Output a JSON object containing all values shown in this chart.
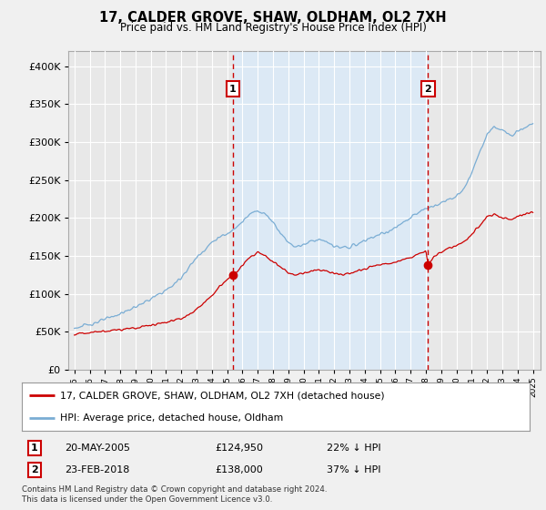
{
  "title": "17, CALDER GROVE, SHAW, OLDHAM, OL2 7XH",
  "subtitle": "Price paid vs. HM Land Registry's House Price Index (HPI)",
  "ylim": [
    0,
    420000
  ],
  "xlim_start": 1994.6,
  "xlim_end": 2025.5,
  "transaction1": {
    "date": "20-MAY-2005",
    "price": 124950,
    "label": "1",
    "year": 2005.38,
    "hpi_note": "22% ↓ HPI"
  },
  "transaction2": {
    "date": "23-FEB-2018",
    "price": 138000,
    "label": "2",
    "year": 2018.14,
    "hpi_note": "37% ↓ HPI"
  },
  "red_line_color": "#cc0000",
  "blue_line_color": "#7aadd4",
  "shade_color": "#dce9f5",
  "plot_bg_color": "#e8e8e8",
  "grid_color": "#ffffff",
  "vline_color": "#cc0000",
  "marker_box_color": "#cc0000",
  "fig_bg_color": "#f0f0f0",
  "legend_label_red": "17, CALDER GROVE, SHAW, OLDHAM, OL2 7XH (detached house)",
  "legend_label_blue": "HPI: Average price, detached house, Oldham",
  "footnote": "Contains HM Land Registry data © Crown copyright and database right 2024.\nThis data is licensed under the Open Government Licence v3.0.",
  "hpi_data": {
    "years": [
      1995.0,
      1995.5,
      1996.0,
      1996.5,
      1997.0,
      1997.5,
      1998.0,
      1998.5,
      1999.0,
      1999.5,
      2000.0,
      2000.5,
      2001.0,
      2001.5,
      2002.0,
      2002.5,
      2003.0,
      2003.5,
      2004.0,
      2004.5,
      2005.0,
      2005.5,
      2006.0,
      2006.5,
      2007.0,
      2007.5,
      2008.0,
      2008.5,
      2009.0,
      2009.5,
      2010.0,
      2010.5,
      2011.0,
      2011.5,
      2012.0,
      2012.5,
      2013.0,
      2013.5,
      2014.0,
      2014.5,
      2015.0,
      2015.5,
      2016.0,
      2016.5,
      2017.0,
      2017.5,
      2018.0,
      2018.5,
      2019.0,
      2019.5,
      2020.0,
      2020.5,
      2021.0,
      2021.5,
      2022.0,
      2022.5,
      2023.0,
      2023.5,
      2024.0,
      2024.5,
      2025.0
    ],
    "values": [
      55000,
      57000,
      60000,
      63000,
      66000,
      70000,
      74000,
      78000,
      83000,
      88000,
      93000,
      99000,
      105000,
      112000,
      122000,
      135000,
      148000,
      158000,
      168000,
      175000,
      178000,
      188000,
      195000,
      205000,
      210000,
      205000,
      195000,
      180000,
      168000,
      162000,
      165000,
      170000,
      172000,
      168000,
      163000,
      160000,
      162000,
      165000,
      170000,
      175000,
      178000,
      182000,
      187000,
      193000,
      200000,
      207000,
      212000,
      216000,
      220000,
      225000,
      228000,
      238000,
      260000,
      285000,
      310000,
      320000,
      315000,
      310000,
      315000,
      320000,
      325000
    ]
  },
  "red_data": {
    "years": [
      1995.0,
      1995.5,
      1996.0,
      1996.5,
      1997.0,
      1997.5,
      1998.0,
      1998.5,
      1999.0,
      1999.5,
      2000.0,
      2000.5,
      2001.0,
      2001.5,
      2002.0,
      2002.5,
      2003.0,
      2003.5,
      2004.0,
      2004.5,
      2005.0,
      2005.38,
      2005.8,
      2006.0,
      2006.5,
      2007.0,
      2007.5,
      2008.0,
      2008.5,
      2009.0,
      2009.5,
      2010.0,
      2010.5,
      2011.0,
      2011.5,
      2012.0,
      2012.5,
      2013.0,
      2013.5,
      2014.0,
      2014.5,
      2015.0,
      2015.5,
      2016.0,
      2016.5,
      2017.0,
      2017.5,
      2018.0,
      2018.14,
      2018.5,
      2019.0,
      2019.5,
      2020.0,
      2020.5,
      2021.0,
      2021.5,
      2022.0,
      2022.5,
      2023.0,
      2023.5,
      2024.0,
      2024.5,
      2025.0
    ],
    "values": [
      47000,
      48000,
      49000,
      50000,
      51000,
      52000,
      53000,
      54000,
      55000,
      57000,
      59000,
      61000,
      63000,
      65000,
      68000,
      73000,
      80000,
      88000,
      98000,
      110000,
      118000,
      124950,
      132000,
      138000,
      148000,
      155000,
      150000,
      142000,
      135000,
      128000,
      125000,
      127000,
      130000,
      132000,
      130000,
      127000,
      125000,
      127000,
      130000,
      133000,
      136000,
      138000,
      140000,
      142000,
      145000,
      148000,
      152000,
      156000,
      138000,
      148000,
      155000,
      160000,
      163000,
      168000,
      178000,
      190000,
      202000,
      205000,
      200000,
      198000,
      202000,
      205000,
      208000
    ]
  }
}
